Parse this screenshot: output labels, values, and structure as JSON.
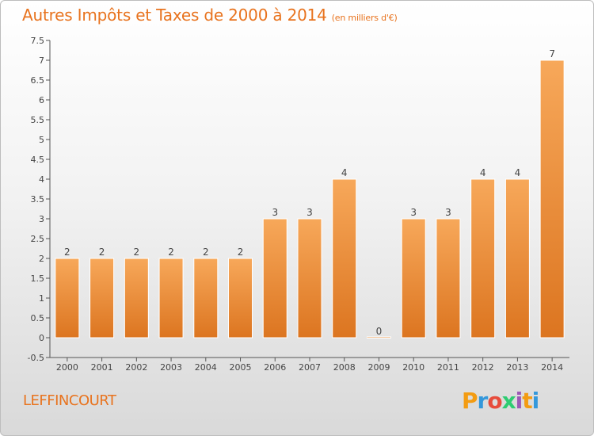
{
  "title": "Autres Impôts et Taxes de 2000 à 2014",
  "unit_note": "(en milliers d'€)",
  "commune": "LEFFINCOURT",
  "logo": {
    "letters": [
      "P",
      "r",
      "o",
      "x",
      "i",
      "t",
      "i"
    ],
    "colors": [
      "#f39c12",
      "#3498db",
      "#e74c3c",
      "#2ecc71",
      "#9b59b6",
      "#f39c12",
      "#3498db"
    ]
  },
  "colors": {
    "bar_light": "#f7a85a",
    "bar_dark": "#e07d24",
    "text": "#e8731e",
    "axis": "#555555"
  },
  "chart_data": {
    "type": "bar",
    "title": "Autres Impôts et Taxes de 2000 à 2014",
    "categories": [
      "2000",
      "2001",
      "2002",
      "2003",
      "2004",
      "2005",
      "2006",
      "2007",
      "2008",
      "2009",
      "2010",
      "2011",
      "2012",
      "2013",
      "2014"
    ],
    "values": [
      2,
      2,
      2,
      2,
      2,
      2,
      3,
      3,
      4,
      0,
      3,
      3,
      4,
      4,
      7
    ],
    "ylim": [
      -0.5,
      7.5
    ],
    "yticks": [
      -0.5,
      0,
      0.5,
      1,
      1.5,
      2,
      2.5,
      3,
      3.5,
      4,
      4.5,
      5,
      5.5,
      6,
      6.5,
      7,
      7.5
    ],
    "grid": false,
    "legend": "none"
  }
}
